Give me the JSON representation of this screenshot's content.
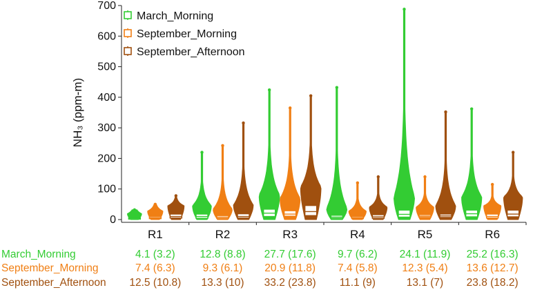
{
  "chart_data": {
    "type": "violin_box",
    "ylabel": "NH₃ (ppm-m)",
    "ylim": [
      0,
      700
    ],
    "yticks": [
      "0",
      "100",
      "200",
      "300",
      "400",
      "500",
      "600",
      "700"
    ],
    "ytick_values": [
      0,
      100,
      200,
      300,
      400,
      500,
      600,
      700
    ],
    "categories": [
      "R1",
      "R2",
      "R3",
      "R4",
      "R5",
      "R6"
    ],
    "legend_position": "top-left",
    "series": [
      {
        "name": "March_Morning",
        "color": "#33cc33",
        "stats_labels": [
          "4.1 (3.2)",
          "12.8 (8.8)",
          "27.7 (17.6)",
          "9.7 (6.2)",
          "24.1 (11.9)",
          "25.2 (16.3)"
        ],
        "max": [
          32,
          220,
          424,
          432,
          688,
          362
        ],
        "box": [
          {
            "q1": 2,
            "median": 4,
            "q3": 6
          },
          {
            "q1": 4,
            "median": 10,
            "q3": 18
          },
          {
            "q1": 10,
            "median": 21,
            "q3": 34
          },
          {
            "q1": 4,
            "median": 8,
            "q3": 14
          },
          {
            "q1": 8,
            "median": 17,
            "q3": 31
          },
          {
            "q1": 9,
            "median": 19,
            "q3": 31
          }
        ]
      },
      {
        "name": "September_Morning",
        "color": "#f07f14",
        "stats_labels": [
          "7.4 (6.3)",
          "9.3 (6.1)",
          "20.9 (11.8)",
          "7.4 (5.8)",
          "12.3 (5.4)",
          "13.6 (12.7)"
        ],
        "max": [
          50,
          242,
          365,
          120,
          140,
          115
        ],
        "box": [
          {
            "q1": 3,
            "median": 6,
            "q3": 10
          },
          {
            "q1": 4,
            "median": 8,
            "q3": 13
          },
          {
            "q1": 11,
            "median": 18,
            "q3": 29
          },
          {
            "q1": 3,
            "median": 6,
            "q3": 10
          },
          {
            "q1": 7,
            "median": 11,
            "q3": 16
          },
          {
            "q1": 5,
            "median": 10,
            "q3": 18
          }
        ]
      },
      {
        "name": "September_Afternoon",
        "color": "#a0500f",
        "stats_labels": [
          "12.5 (10.8)",
          "13.3 (10)",
          "33.2 (23.8)",
          "11.1 (9)",
          "13.1 (7)",
          "23.8 (18.2)"
        ],
        "max": [
          78,
          316,
          405,
          140,
          352,
          220
        ],
        "box": [
          {
            "q1": 5,
            "median": 10,
            "q3": 18
          },
          {
            "q1": 5,
            "median": 10,
            "q3": 19
          },
          {
            "q1": 13,
            "median": 26,
            "q3": 46
          },
          {
            "q1": 4,
            "median": 9,
            "q3": 16
          },
          {
            "q1": 7,
            "median": 12,
            "q3": 18
          },
          {
            "q1": 9,
            "median": 18,
            "q3": 31
          }
        ]
      }
    ]
  }
}
